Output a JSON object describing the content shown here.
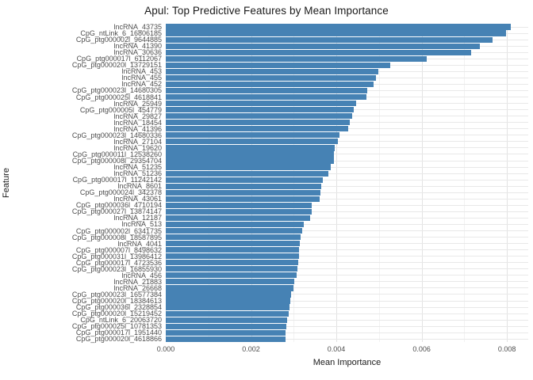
{
  "chart_data": {
    "type": "bar",
    "orientation": "horizontal",
    "title": "Apul: Top Predictive Features by Mean Importance",
    "xlabel": "Mean Importance",
    "ylabel": "Feature",
    "bar_color": "#4682B4",
    "xlim": [
      0,
      0.0085
    ],
    "x_major_gridlines": [
      0.0,
      0.002,
      0.004,
      0.006,
      0.008
    ],
    "x_minor_gridlines": [
      0.001,
      0.003,
      0.005,
      0.007
    ],
    "x_ticks": [
      0.0,
      0.002,
      0.004,
      0.006,
      0.008
    ],
    "x_tick_labels": [
      "0.000",
      "0.002",
      "0.004",
      "0.006",
      "0.008"
    ],
    "legend": "none",
    "grid": "on",
    "categories": [
      "lncRNA_43735",
      "CpG_ntLink_6_16806185",
      "CpG_ptg000002l_9644885",
      "lncRNA_41390",
      "lncRNA_30636",
      "CpG_ptg000017l_6112067",
      "CpG_ptg000020l_13729151",
      "lncRNA_453",
      "lncRNA_455",
      "lncRNA_452",
      "CpG_ptg000023l_14680305",
      "CpG_ptg000025l_4618841",
      "lncRNA_25949",
      "CpG_ptg000005l_454779",
      "lncRNA_29827",
      "lncRNA_18454",
      "lncRNA_41396",
      "CpG_ptg000023l_14680336",
      "lncRNA_27104",
      "lncRNA_19620",
      "CpG_ptg000011l_12538260",
      "CpG_ptg000008l_29354704",
      "lncRNA_51235",
      "lncRNA_51236",
      "CpG_ptg000017l_11242142",
      "lncRNA_8601",
      "CpG_ptg000024l_342378",
      "lncRNA_43061",
      "CpG_ptg000036l_4710194",
      "CpG_ptg000027l_13874147",
      "lncRNA_12187",
      "lncRNA_513",
      "CpG_ptg000002l_6341735",
      "CpG_ptg000008l_18587895",
      "lncRNA_4041",
      "CpG_ptg000007l_8498632",
      "CpG_ptg000031l_13986412",
      "CpG_ptg000017l_4723536",
      "CpG_ptg000023l_16855930",
      "lncRNA_456",
      "lncRNA_21883",
      "lncRNA_26668",
      "CpG_ptg000023l_16577384",
      "CpG_ptg000020l_18384613",
      "CpG_ptg000036l_2328854",
      "CpG_ptg000020l_15219452",
      "CpG_ntLink_6_20063720",
      "CpG_ptg000025l_10781353",
      "CpG_ptg000017l_1951440",
      "CpG_ptg000020l_4618866"
    ],
    "values": [
      0.0081,
      0.00798,
      0.00767,
      0.00736,
      0.00716,
      0.00611,
      0.00526,
      0.00498,
      0.00493,
      0.00487,
      0.00473,
      0.0047,
      0.00446,
      0.0044,
      0.00437,
      0.00431,
      0.00428,
      0.00407,
      0.00403,
      0.00397,
      0.00395,
      0.00394,
      0.00387,
      0.00381,
      0.00368,
      0.00364,
      0.00362,
      0.00361,
      0.00342,
      0.00342,
      0.00339,
      0.00323,
      0.00319,
      0.00316,
      0.00314,
      0.00313,
      0.00312,
      0.0031,
      0.00308,
      0.00306,
      0.00302,
      0.00299,
      0.00293,
      0.00292,
      0.00291,
      0.00289,
      0.00284,
      0.00283,
      0.00281,
      0.0028
    ]
  }
}
